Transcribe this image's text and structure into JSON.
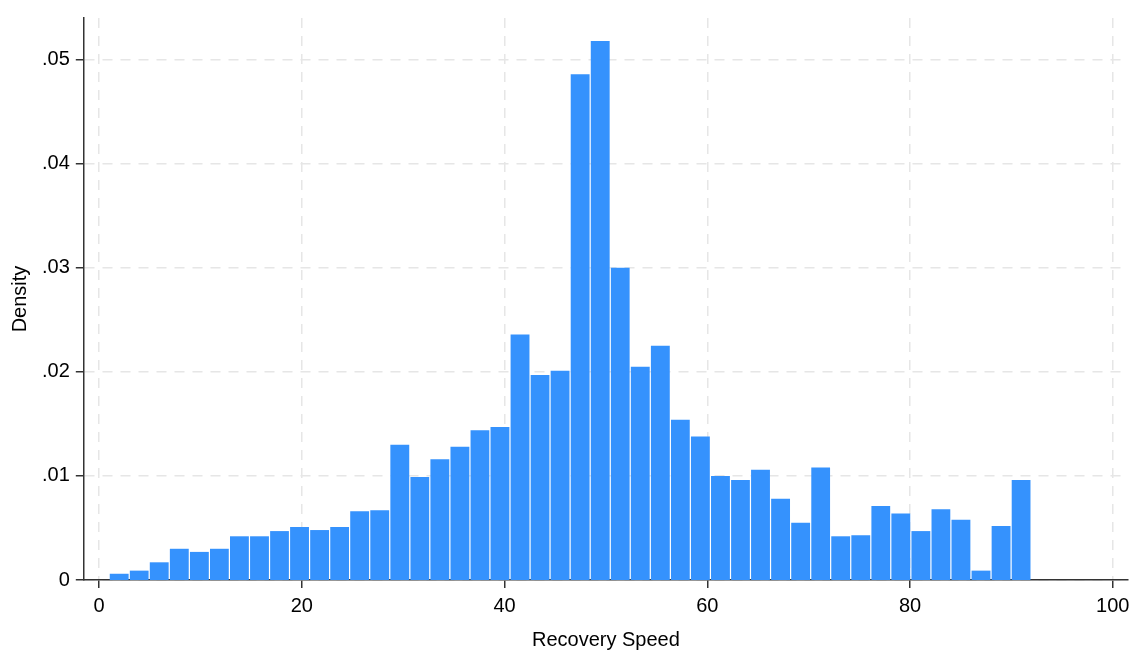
{
  "chart_data": {
    "type": "histogram",
    "xlabel": "Recovery Speed",
    "ylabel": "Density",
    "bins": [
      1.0,
      2.98,
      4.95,
      6.93,
      8.91,
      10.89,
      12.86,
      14.84,
      16.82,
      18.79,
      20.77,
      22.75,
      24.72,
      26.7,
      28.68,
      30.66,
      32.63,
      34.61,
      36.59,
      38.56,
      40.54,
      42.52,
      44.49,
      46.47,
      48.45,
      50.43,
      52.4,
      54.38,
      56.36,
      58.33,
      60.31,
      62.29,
      64.26,
      66.24,
      68.22,
      70.2,
      72.17,
      74.15,
      76.13,
      78.1,
      80.08,
      82.06,
      84.03,
      86.01,
      87.99,
      89.97,
      91.94
    ],
    "values": [
      0.0006,
      0.0009,
      0.0017,
      0.003,
      0.0027,
      0.003,
      0.0042,
      0.0042,
      0.0047,
      0.0051,
      0.0048,
      0.0051,
      0.0066,
      0.0067,
      0.013,
      0.0099,
      0.0116,
      0.0128,
      0.0144,
      0.0147,
      0.0236,
      0.0197,
      0.0201,
      0.0486,
      0.0518,
      0.03,
      0.0205,
      0.0225,
      0.0154,
      0.0138,
      0.01,
      0.0096,
      0.0106,
      0.0078,
      0.0055,
      0.0108,
      0.0042,
      0.0043,
      0.0071,
      0.0064,
      0.0047,
      0.0068,
      0.0058,
      0.0009,
      0.0052,
      0.0096
    ],
    "color": "#3592fd",
    "xlim": [
      -1.5,
      101.5
    ],
    "xticks": [
      0,
      20,
      40,
      60,
      80,
      100
    ],
    "ylim": [
      0,
      0.054
    ],
    "yticks": [
      {
        "value": 0,
        "label": "0"
      },
      {
        "value": 0.01,
        "label": ".01"
      },
      {
        "value": 0.02,
        "label": ".02"
      },
      {
        "value": 0.03,
        "label": ".03"
      },
      {
        "value": 0.04,
        "label": ".04"
      },
      {
        "value": 0.05,
        "label": ".05"
      }
    ],
    "grid": true,
    "legend": false
  }
}
